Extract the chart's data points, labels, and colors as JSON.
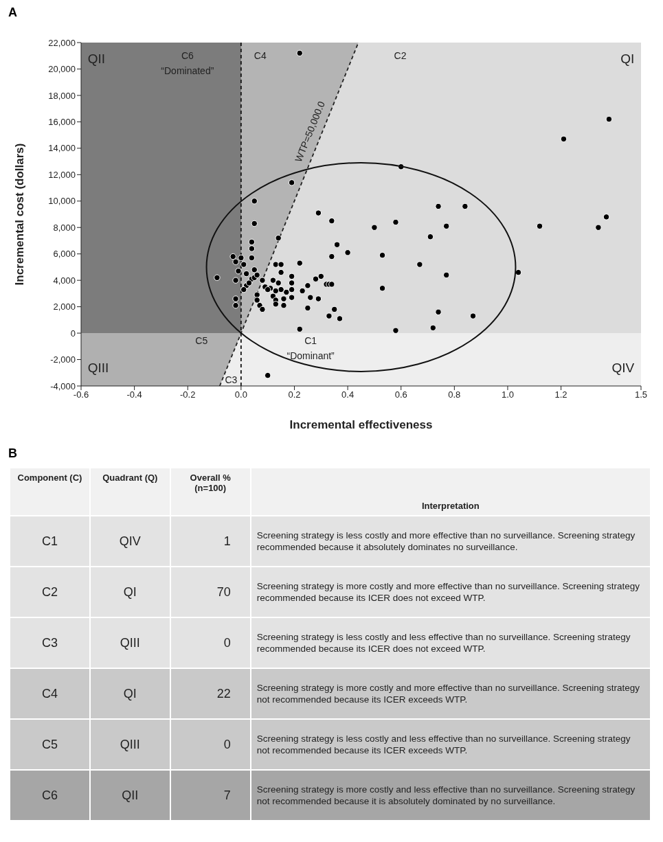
{
  "chart_data": [
    {
      "type": "scatter",
      "title": "A",
      "xlabel": "Incremental effectiveness",
      "ylabel": "Incremental cost (dollars)",
      "xlim": [
        -0.6,
        1.5
      ],
      "ylim": [
        -4000,
        22000
      ],
      "xticks": [
        -0.6,
        -0.4,
        -0.2,
        {
          "value": 0,
          "label": "0.0"
        },
        0.2,
        0.4,
        0.6,
        0.8,
        {
          "value": 1,
          "label": "1.0"
        },
        1.2,
        1.5
      ],
      "yticks": [
        {
          "value": -4000,
          "label": "-4,000"
        },
        {
          "value": -2000,
          "label": "-2,000"
        },
        0,
        {
          "value": 2000,
          "label": "2,000"
        },
        {
          "value": 4000,
          "label": "4,000"
        },
        {
          "value": 6000,
          "label": "6,000"
        },
        {
          "value": 8000,
          "label": "8,000"
        },
        {
          "value": 10000,
          "label": "10,000"
        },
        {
          "value": 12000,
          "label": "12,000"
        },
        {
          "value": 14000,
          "label": "14,000"
        },
        {
          "value": 16000,
          "label": "16,000"
        },
        {
          "value": 18000,
          "label": "18,000"
        },
        {
          "value": 20000,
          "label": "20,000"
        },
        {
          "value": 22000,
          "label": "22,000"
        }
      ],
      "grid": false,
      "legend": false,
      "bands": [
        {
          "axis": "y",
          "from": 0,
          "to": 22000,
          "color": "#b4b4b4"
        },
        {
          "axis": "y",
          "from": -4000,
          "to": 0,
          "color": "#eeeeee"
        }
      ],
      "series": [
        {
          "type": "area",
          "color": "#7c7c7c",
          "x": [
            -0.6,
            0
          ],
          "values": [
            22000,
            22000
          ]
        },
        {
          "type": "area",
          "color": "#b0b0b0",
          "x": [
            -0.6,
            -0.08,
            0
          ],
          "values": [
            -4000,
            -4000,
            0
          ]
        },
        {
          "type": "area",
          "color": "#dcdcdc",
          "x": [
            0,
            0.44,
            1.5
          ],
          "values": [
            0,
            22000,
            22000
          ]
        },
        {
          "type": "scatter",
          "color": "#000000",
          "marker": "circle",
          "x": [
            1.38,
            1.21,
            0.6,
            0.74,
            0.84,
            0.58,
            0.77,
            0.71,
            1.12,
            1.37,
            1.34,
            0.67,
            0.77,
            1.04,
            0.74,
            0.87,
            0.72,
            0.58,
            0.22,
            0.19,
            0.05,
            0.05,
            0.29,
            0.34,
            0.5,
            0.14,
            0.36,
            0.4,
            0.34,
            0.53,
            0.22,
            0.53,
            0.22,
            0.1,
            0.33,
            0.35,
            0.37,
            0.25,
            0.26,
            0.29,
            0.25,
            0.28,
            0.3,
            0.32,
            0.33,
            0.34,
            0.23,
            0.19,
            0.19,
            0.19,
            0.19,
            0.16,
            0.16,
            0.17,
            0.15,
            0.13,
            0.15,
            0.15,
            0.14,
            0.12,
            0.11,
            0.13,
            0.12,
            0.13,
            0.13,
            0.08,
            0.09,
            0.1,
            0.06,
            0.06,
            0.07,
            0.08,
            -0.09,
            -0.03,
            -0.02,
            0,
            -0.01,
            -0.02,
            -0.02,
            -0.02,
            0.01,
            0.02,
            0.04,
            0.05,
            0.05,
            0.06,
            0.04,
            0.04,
            0.04,
            0.02,
            0.01,
            0.03
          ],
          "values": [
            16200,
            14700,
            12600,
            9600,
            9600,
            8400,
            8100,
            7300,
            8100,
            8800,
            8000,
            5200,
            4400,
            4600,
            1600,
            1300,
            400,
            200,
            21200,
            11400,
            10000,
            8300,
            9100,
            8500,
            8000,
            7200,
            6700,
            6100,
            5800,
            5900,
            5300,
            3400,
            300,
            -3200,
            1300,
            1800,
            1100,
            1900,
            2700,
            2600,
            3600,
            4100,
            4300,
            3700,
            3700,
            3700,
            3200,
            4300,
            3800,
            3300,
            2700,
            2600,
            2100,
            3100,
            3300,
            5200,
            5200,
            4600,
            3800,
            4000,
            3400,
            3200,
            2800,
            2500,
            2200,
            4000,
            3500,
            3300,
            2900,
            2500,
            2100,
            1800,
            4200,
            5800,
            5400,
            5700,
            4700,
            4000,
            2600,
            2100,
            5200,
            4500,
            4100,
            4200,
            4800,
            4400,
            5700,
            6400,
            6900,
            3600,
            3300,
            3800
          ]
        },
        {
          "type": "line",
          "color": "#222222",
          "line_style": "dashed",
          "marker": "none",
          "x": [
            -0.08,
            0.44
          ],
          "values": [
            -4000,
            22000
          ]
        }
      ],
      "ref_lines": [
        {
          "axis": "x",
          "value": 0,
          "line_style": "dashed",
          "color": "#111111"
        }
      ],
      "annotations": [
        "QII",
        "QI",
        "QIII",
        "QIV",
        "C6",
        "“Dominated”",
        "C4",
        "C2",
        "C5",
        "C1",
        "“Dominant”",
        "C3",
        "WTP=50,000.0"
      ]
    },
    {
      "type": "other",
      "title": "B",
      "data_labels": true,
      "categories": [
        "C1",
        "C2",
        "C3",
        "C4",
        "C5",
        "C6"
      ],
      "values": [
        1,
        70,
        0,
        22,
        0,
        7
      ],
      "colors": [
        "#e3e3e3",
        "#e3e3e3",
        "#e3e3e3",
        "#c9c9c9",
        "#c9c9c9",
        "#a6a6a6"
      ],
      "annotations": [
        "Component (C)",
        "Quadrant (Q)",
        "Overall % (n=100)",
        "Interpretation",
        "QIV",
        "Screening strategy is less costly and more effective than no surveillance. Screening strategy recommended because it absolutely dominates no surveillance.",
        "QI",
        "Screening strategy is more costly and more effective than no surveillance. Screening strategy recommended because its ICER does not exceed WTP.",
        "QIII",
        "Screening strategy is less costly and less effective than no surveillance. Screening strategy recommended because its ICER does not exceed WTP.",
        "QI",
        "Screening strategy is more costly and more effective than no surveillance. Screening strategy not recommended because its ICER exceeds WTP.",
        "QIII",
        "Screening strategy is less costly and less effective than no surveillance. Screening strategy not recommended because its ICER exceeds WTP.",
        "QII",
        "Screening strategy is more costly and less effective than no surveillance. Screening strategy not recommended because it is absolutely dominated by no surveillance."
      ]
    }
  ]
}
